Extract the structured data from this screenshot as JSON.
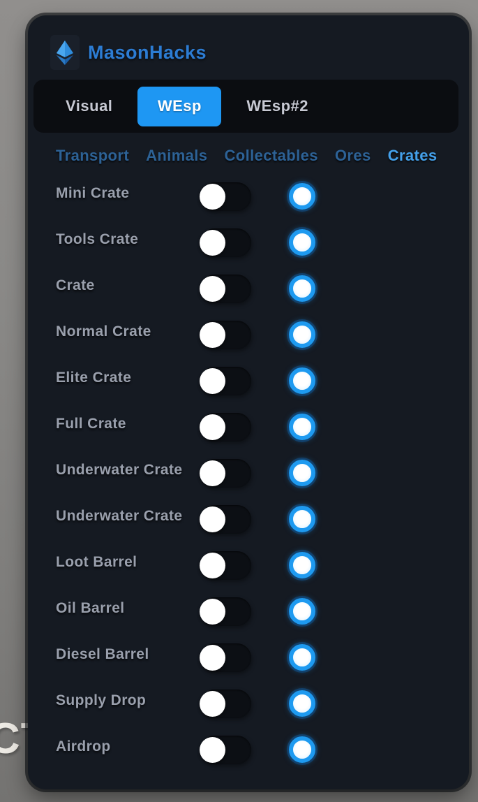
{
  "window": {
    "title": "MasonHacks"
  },
  "colors": {
    "accent": "#1e97f3",
    "panel_bg": "#151a22",
    "tabbar_bg": "#0b0d11",
    "title_blue": "#2c7cd3",
    "tab_inactive_text": "#c7c9d3",
    "subtab_inactive": "#2d6296",
    "subtab_active": "#44a0ea",
    "row_label": "#9aa0ad",
    "toggle_track": "#0c0f14",
    "toggle_knob": "#ffffff",
    "swatch_ring": "#1e9af0",
    "swatch_center": "#eef9ff"
  },
  "tabs": [
    {
      "label": "Visual",
      "active": false
    },
    {
      "label": "WEsp",
      "active": true
    },
    {
      "label": "WEsp#2",
      "active": false
    }
  ],
  "subtabs": [
    {
      "label": "Transport",
      "active": false
    },
    {
      "label": "Animals",
      "active": false
    },
    {
      "label": "Collectables",
      "active": false
    },
    {
      "label": "Ores",
      "active": false
    },
    {
      "label": "Crates",
      "active": true
    }
  ],
  "rows": [
    {
      "label": "Mini Crate",
      "enabled": false,
      "color": "#1e9af0"
    },
    {
      "label": "Tools Crate",
      "enabled": false,
      "color": "#1e9af0"
    },
    {
      "label": "Crate",
      "enabled": false,
      "color": "#1e9af0"
    },
    {
      "label": "Normal Crate",
      "enabled": false,
      "color": "#1e9af0"
    },
    {
      "label": "Elite Crate",
      "enabled": false,
      "color": "#1e9af0"
    },
    {
      "label": "Full Crate",
      "enabled": false,
      "color": "#1e9af0"
    },
    {
      "label": "Underwater Crate",
      "enabled": false,
      "color": "#1e9af0"
    },
    {
      "label": "Underwater Crate",
      "enabled": false,
      "color": "#1e9af0"
    },
    {
      "label": "Loot Barrel",
      "enabled": false,
      "color": "#1e9af0"
    },
    {
      "label": "Oil Barrel",
      "enabled": false,
      "color": "#1e9af0"
    },
    {
      "label": "Diesel Barrel",
      "enabled": false,
      "color": "#1e9af0"
    },
    {
      "label": "Supply Drop",
      "enabled": false,
      "color": "#1e9af0"
    },
    {
      "label": "Airdrop",
      "enabled": false,
      "color": "#1e9af0"
    }
  ],
  "background": {
    "partial_text": "CT"
  }
}
